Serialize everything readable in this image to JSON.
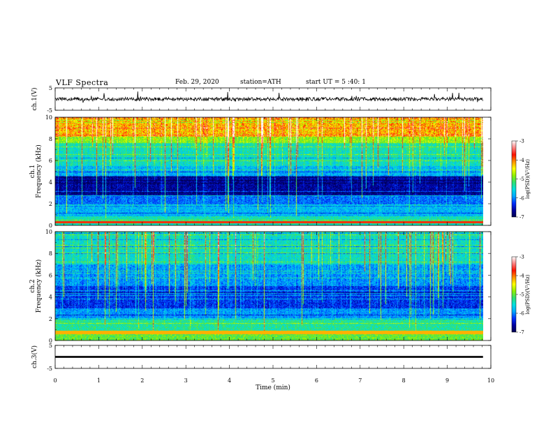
{
  "header": {
    "title": "VLF  Spectra",
    "date": "Feb. 29, 2020",
    "station": "station=ATH",
    "start_time": "start  UT  =   5  :40: 1"
  },
  "chart_data": [
    {
      "id": "ch1-waveform",
      "type": "line",
      "ylabel": "ch.1(V)",
      "ylim": [
        -5,
        5
      ],
      "yticks": [
        "5",
        "-5"
      ],
      "xlim": [
        0,
        10
      ],
      "baseline": 0,
      "trace_color": "#000000"
    },
    {
      "id": "ch1-spectrogram",
      "type": "heatmap",
      "ylabel": "ch.1",
      "ylabel2": "Frequency  (kHz)",
      "ylim": [
        0,
        10
      ],
      "yticks": [
        "0",
        "2",
        "4",
        "6",
        "8",
        "10"
      ],
      "xlim": [
        0,
        10
      ],
      "data_extent_min": 9.82,
      "colorbar": {
        "label": "log(PSD)(V²/Hz)",
        "range": [
          -7,
          -3
        ],
        "ticks": [
          "-3",
          "-4",
          "-5",
          "-6",
          "-7"
        ]
      }
    },
    {
      "id": "ch2-spectrogram",
      "type": "heatmap",
      "ylabel": "ch.2",
      "ylabel2": "Frequency  (kHz)",
      "ylim": [
        0,
        10
      ],
      "yticks": [
        "0",
        "2",
        "4",
        "6",
        "8",
        "10"
      ],
      "xlim": [
        0,
        10
      ],
      "data_extent_min": 9.82,
      "colorbar": {
        "label": "log(PSD)(V²/Hz)",
        "range": [
          -7,
          -3
        ],
        "ticks": [
          "-3",
          "-4",
          "-5",
          "-6",
          "-7"
        ]
      }
    },
    {
      "id": "ch3-waveform",
      "type": "line",
      "ylabel": "ch.3(V)",
      "ylim": [
        -5,
        5
      ],
      "yticks": [
        "5",
        "-5"
      ],
      "xlim": [
        0,
        10
      ],
      "baseline": 0,
      "trace_color": "#000000"
    }
  ],
  "x_axis": {
    "label": "Time  (min)",
    "range": [
      0,
      10
    ],
    "ticks": [
      "0",
      "1",
      "2",
      "3",
      "4",
      "5",
      "6",
      "7",
      "8",
      "9",
      "10"
    ]
  },
  "colormap": [
    "#000050",
    "#0000a0",
    "#0030ff",
    "#00a8ff",
    "#00e0e0",
    "#30e070",
    "#90f000",
    "#ffff00",
    "#ff9000",
    "#ff1000",
    "#ff8080",
    "#ffffff"
  ]
}
